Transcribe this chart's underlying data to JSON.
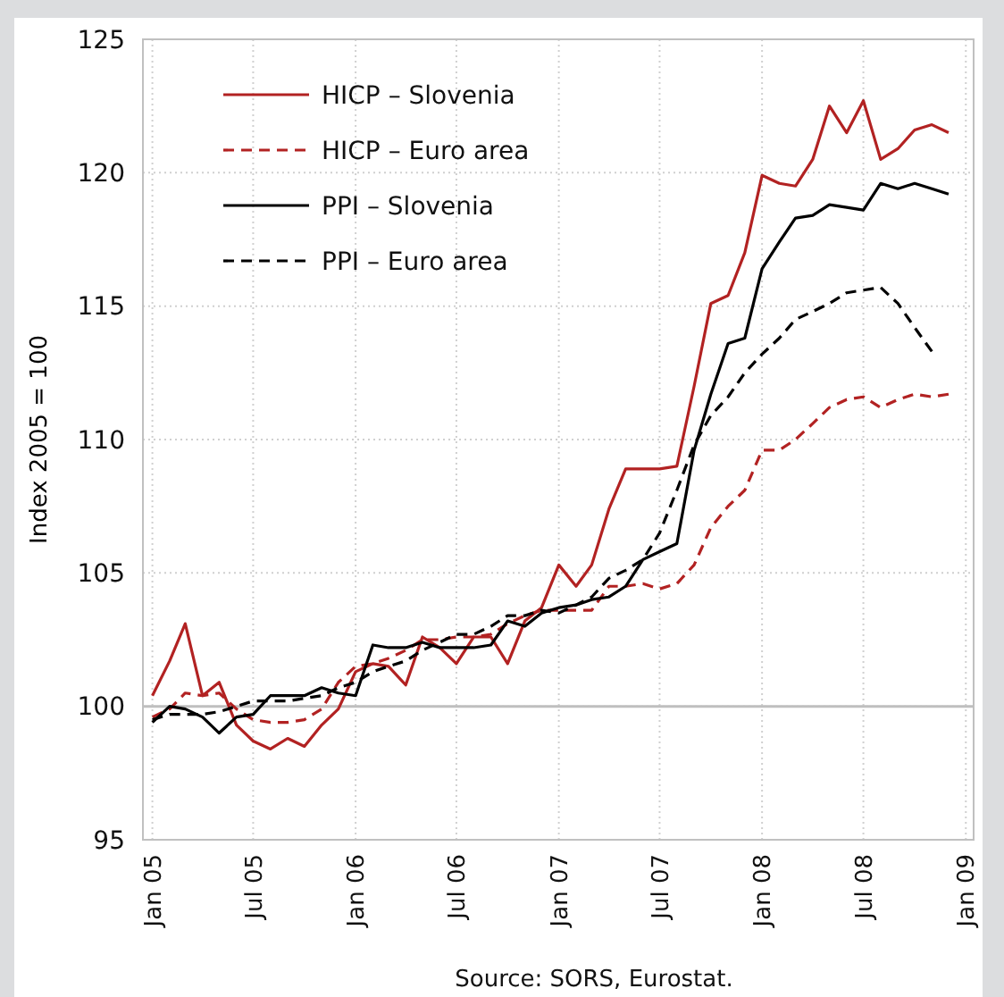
{
  "chart_data": {
    "type": "line",
    "ylabel": "Index 2005 = 100",
    "annotations": [
      "Source: SORS, Eurostat."
    ],
    "x": [
      "2005-01",
      "2005-02",
      "2005-03",
      "2005-04",
      "2005-05",
      "2005-06",
      "2005-07",
      "2005-08",
      "2005-09",
      "2005-10",
      "2005-11",
      "2005-12",
      "2006-01",
      "2006-02",
      "2006-03",
      "2006-04",
      "2006-05",
      "2006-06",
      "2006-07",
      "2006-08",
      "2006-09",
      "2006-10",
      "2006-11",
      "2006-12",
      "2007-01",
      "2007-02",
      "2007-03",
      "2007-04",
      "2007-05",
      "2007-06",
      "2007-07",
      "2007-08",
      "2007-09",
      "2007-10",
      "2007-11",
      "2007-12",
      "2008-01",
      "2008-02",
      "2008-03",
      "2008-04",
      "2008-05",
      "2008-06",
      "2008-07",
      "2008-08",
      "2008-09",
      "2008-10",
      "2008-11",
      "2008-12"
    ],
    "series": [
      {
        "name": "HICP – Slovenia",
        "color": "#b22222",
        "line_style": "solid",
        "values": [
          100.4,
          101.7,
          103.1,
          100.4,
          100.9,
          99.3,
          98.7,
          98.4,
          98.8,
          98.5,
          99.3,
          99.9,
          101.3,
          101.6,
          101.5,
          100.8,
          102.6,
          102.2,
          101.6,
          102.6,
          102.6,
          101.6,
          103.2,
          103.7,
          105.3,
          104.5,
          105.3,
          107.4,
          108.9,
          108.9,
          108.9,
          109.0,
          112.0,
          115.1,
          115.4,
          117.0,
          119.9,
          119.6,
          119.5,
          120.5,
          122.5,
          121.5,
          122.7,
          120.5,
          120.9,
          121.6,
          121.8,
          121.5
        ]
      },
      {
        "name": "HICP – Euro area",
        "color": "#b22222",
        "line_style": "dashed",
        "values": [
          99.6,
          99.9,
          100.5,
          100.4,
          100.5,
          99.9,
          99.5,
          99.4,
          99.4,
          99.5,
          99.9,
          100.9,
          101.5,
          101.6,
          101.8,
          102.1,
          102.5,
          102.5,
          102.6,
          102.6,
          102.7,
          103.1,
          103.4,
          103.6,
          103.6,
          103.6,
          103.6,
          104.5,
          104.5,
          104.6,
          104.4,
          104.6,
          105.3,
          106.7,
          107.5,
          108.1,
          109.6,
          109.6,
          110.0,
          110.6,
          111.2,
          111.5,
          111.6,
          111.2,
          111.5,
          111.7,
          111.6,
          111.7
        ]
      },
      {
        "name": "PPI – Slovenia",
        "color": "#000000",
        "line_style": "solid",
        "values": [
          99.4,
          100.0,
          99.9,
          99.6,
          99.0,
          99.6,
          99.7,
          100.4,
          100.4,
          100.4,
          100.7,
          100.5,
          100.4,
          102.3,
          102.2,
          102.2,
          102.4,
          102.2,
          102.2,
          102.2,
          102.3,
          103.2,
          103.0,
          103.5,
          103.7,
          103.8,
          104.0,
          104.1,
          104.5,
          105.5,
          105.8,
          106.1,
          109.6,
          111.7,
          113.6,
          113.8,
          116.4,
          117.4,
          118.3,
          118.4,
          118.8,
          118.7,
          118.6,
          119.6,
          119.4,
          119.6,
          119.4,
          119.2
        ]
      },
      {
        "name": "PPI – Euro area",
        "color": "#000000",
        "line_style": "dashed",
        "values": [
          99.5,
          99.7,
          99.7,
          99.7,
          99.8,
          100.0,
          100.2,
          100.2,
          100.2,
          100.3,
          100.4,
          100.7,
          100.9,
          101.3,
          101.5,
          101.7,
          102.1,
          102.4,
          102.7,
          102.7,
          103.0,
          103.4,
          103.4,
          103.6,
          103.5,
          103.8,
          104.1,
          104.8,
          105.1,
          105.5,
          106.5,
          108.1,
          109.8,
          110.9,
          111.6,
          112.5,
          113.2,
          113.8,
          114.5,
          114.8,
          115.1,
          115.5,
          115.6,
          115.7,
          115.1,
          114.2,
          113.3,
          null
        ]
      }
    ],
    "xlim": [
      "2004-12-15",
      "2009-01-15"
    ],
    "xticks": [
      {
        "value": "2005-01",
        "label": "Jan 05"
      },
      {
        "value": "2005-07",
        "label": "Jul 05"
      },
      {
        "value": "2006-01",
        "label": "Jan 06"
      },
      {
        "value": "2006-07",
        "label": "Jul 06"
      },
      {
        "value": "2007-01",
        "label": "Jan 07"
      },
      {
        "value": "2007-07",
        "label": "Jul 07"
      },
      {
        "value": "2008-01",
        "label": "Jan 08"
      },
      {
        "value": "2008-07",
        "label": "Jul 08"
      },
      {
        "value": "2009-01",
        "label": "Jan 09"
      }
    ],
    "ylim": [
      95,
      125
    ],
    "yticks": [
      95,
      100,
      105,
      110,
      115,
      120,
      125
    ],
    "grid": true,
    "legend": "top left",
    "marker": "none",
    "ref_lines": [
      {
        "axis": "y",
        "value": 100,
        "color": "#bfbfbf"
      }
    ]
  }
}
